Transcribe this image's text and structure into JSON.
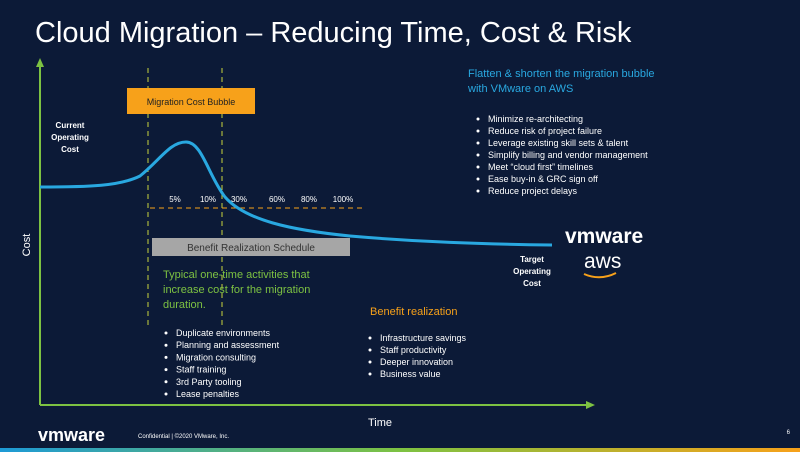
{
  "title": "Cloud Migration – Reducing Time, Cost & Risk",
  "axes": {
    "y_label": "Cost",
    "x_label": "Time"
  },
  "current_cost_label": [
    "Current",
    "Operating",
    "Cost"
  ],
  "target_cost_label": [
    "Target",
    "Operating",
    "Cost"
  ],
  "migration_bubble_label": "Migration Cost Bubble",
  "schedule_label": "Benefit Realization Schedule",
  "percent_labels": [
    "5%",
    "10%",
    "30%",
    "60%",
    "80%",
    "100%"
  ],
  "one_time": {
    "text": [
      "Typical one-time activities that",
      "increase cost for the migration",
      "duration."
    ],
    "bullets": [
      "Duplicate environments",
      "Planning and assessment",
      "Migration consulting",
      "Staff training",
      "3rd Party tooling",
      "Lease penalties"
    ]
  },
  "benefit": {
    "heading": "Benefit realization",
    "bullets": [
      "Infrastructure savings",
      "Staff productivity",
      "Deeper innovation",
      "Business value"
    ]
  },
  "flatten": {
    "text": [
      "Flatten & shorten the migration bubble",
      "with VMware on AWS"
    ],
    "bullets": [
      "Minimize re-architecting",
      "Reduce risk of project failure",
      "Leverage existing skill sets & talent",
      "Simplify billing and vendor management",
      "Meet “cloud first” timelines",
      "Ease buy-in & GRC sign off",
      "Reduce project delays"
    ]
  },
  "logos": {
    "vmware": "vmware",
    "aws": "aws"
  },
  "footer": {
    "logo": "vmware",
    "text": "Confidential  |  ©2020 VMware, Inc.",
    "page": "6"
  }
}
